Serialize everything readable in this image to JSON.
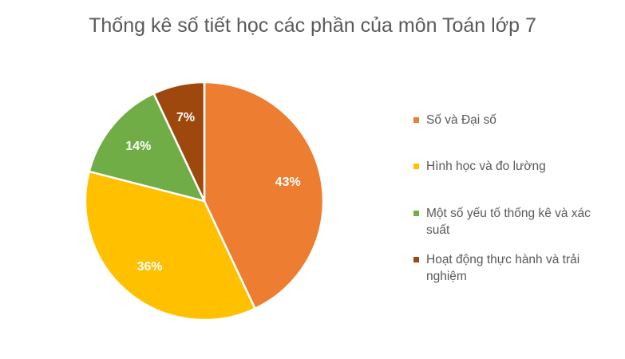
{
  "chart_data": {
    "type": "pie",
    "title": "Thống kê số tiết học các phần của môn Toán lớp 7",
    "categories": [
      "Số và Đại số",
      "Hình học và đo lường",
      "Một số yếu tố thống kê và xác suất",
      "Hoạt động thực hành và trải nghiệm"
    ],
    "values": [
      43,
      36,
      14,
      7
    ],
    "data_labels": [
      "43%",
      "36%",
      "14%",
      "7%"
    ],
    "colors": [
      "#ED7D31",
      "#FFC000",
      "#70AD47",
      "#9E480E"
    ],
    "legend_position": "right",
    "start_angle": "top, clockwise"
  }
}
